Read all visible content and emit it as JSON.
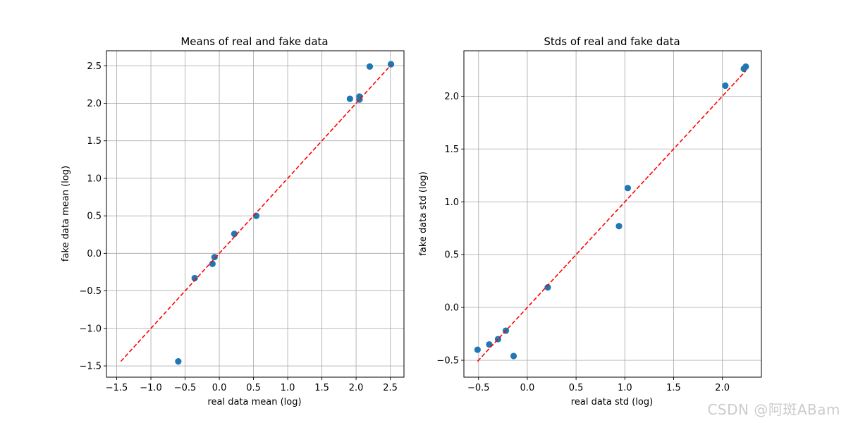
{
  "colors": {
    "points": "#1f77b4",
    "diagonal": "#ff0000",
    "grid": "#b0b0b0",
    "axes": "#000000"
  },
  "watermark": "CSDN @阿斑ABam",
  "chart_data": [
    {
      "type": "scatter",
      "title": "Means of real and fake data",
      "xlabel": "real data mean (log)",
      "ylabel": "fake data mean (log)",
      "xlim": [
        -1.65,
        2.7
      ],
      "ylim": [
        -1.65,
        2.7
      ],
      "xticks": [
        -1.5,
        -1.0,
        -0.5,
        0.0,
        0.5,
        1.0,
        1.5,
        2.0,
        2.5
      ],
      "yticks": [
        -1.5,
        -1.0,
        -0.5,
        0.0,
        0.5,
        1.0,
        1.5,
        2.0,
        2.5
      ],
      "grid": true,
      "points": [
        {
          "x": -0.6,
          "y": -1.44
        },
        {
          "x": -0.36,
          "y": -0.33
        },
        {
          "x": -0.1,
          "y": -0.14
        },
        {
          "x": -0.07,
          "y": -0.05
        },
        {
          "x": 0.22,
          "y": 0.26
        },
        {
          "x": 0.54,
          "y": 0.5
        },
        {
          "x": 1.91,
          "y": 2.06
        },
        {
          "x": 2.05,
          "y": 2.09
        },
        {
          "x": 2.05,
          "y": 2.05
        },
        {
          "x": 2.2,
          "y": 2.49
        },
        {
          "x": 2.51,
          "y": 2.52
        }
      ],
      "reference_line": {
        "style": "dashed",
        "from": [
          -1.44,
          -1.44
        ],
        "to": [
          2.51,
          2.51
        ]
      }
    },
    {
      "type": "scatter",
      "title": "Stds of real and fake data",
      "xlabel": "real data std (log)",
      "ylabel": "fake data std (log)",
      "xlim": [
        -0.65,
        2.4
      ],
      "ylim": [
        -0.66,
        2.43
      ],
      "xticks": [
        -0.5,
        0.0,
        0.5,
        1.0,
        1.5,
        2.0
      ],
      "yticks": [
        -0.5,
        0.0,
        0.5,
        1.0,
        1.5,
        2.0
      ],
      "grid": true,
      "points": [
        {
          "x": -0.51,
          "y": -0.4
        },
        {
          "x": -0.39,
          "y": -0.35
        },
        {
          "x": -0.3,
          "y": -0.3
        },
        {
          "x": -0.22,
          "y": -0.22
        },
        {
          "x": -0.14,
          "y": -0.46
        },
        {
          "x": 0.21,
          "y": 0.19
        },
        {
          "x": 0.94,
          "y": 0.77
        },
        {
          "x": 1.03,
          "y": 1.13
        },
        {
          "x": 2.03,
          "y": 2.1
        },
        {
          "x": 2.22,
          "y": 2.26
        },
        {
          "x": 2.24,
          "y": 2.28
        }
      ],
      "reference_line": {
        "style": "dashed",
        "from": [
          -0.51,
          -0.51
        ],
        "to": [
          2.24,
          2.24
        ]
      }
    }
  ]
}
